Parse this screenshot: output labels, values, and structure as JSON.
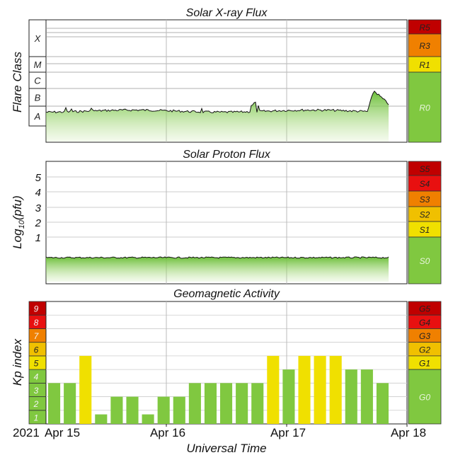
{
  "chart_data": [
    {
      "type": "area",
      "title": "Solar X-ray Flux",
      "ylabel": "Flare Class",
      "y_classes": [
        "X",
        "M",
        "C",
        "B",
        "A"
      ],
      "scale_label": "R0",
      "scale_levels": [
        "R5",
        "R3",
        "R1",
        "R0"
      ],
      "scale_colors": [
        "#c00000",
        "#f08000",
        "#f0e000",
        "#80c840"
      ],
      "note": "Background flux near A–B class, small C-level rise near Apr 18"
    },
    {
      "type": "area",
      "title": "Solar Proton Flux",
      "ylabel": "Log10(pfu)",
      "ylabel_main": "Log",
      "ylabel_sub": "10",
      "ylabel_tail": "(pfu)",
      "yticks": [
        "1",
        "2",
        "3",
        "4",
        "5"
      ],
      "scale_levels": [
        "S5",
        "S4",
        "S3",
        "S2",
        "S1",
        "S0"
      ],
      "scale_colors": [
        "#c00000",
        "#e81010",
        "#f08000",
        "#f0c000",
        "#f0e000",
        "#80c840"
      ]
    },
    {
      "type": "bar",
      "title": "Geomagnetic Activity",
      "ylabel": "Kp index",
      "kp_levels": [
        "1",
        "2",
        "3",
        "4",
        "5",
        "6",
        "7",
        "8",
        "9"
      ],
      "kp_colors": [
        "#80c840",
        "#80c840",
        "#80c840",
        "#80c840",
        "#f0e000",
        "#f0c000",
        "#f08000",
        "#e81010",
        "#c00000"
      ],
      "scale_levels": [
        "G5",
        "G4",
        "G3",
        "G2",
        "G1",
        "G0"
      ],
      "scale_colors": [
        "#c00000",
        "#e81010",
        "#f08000",
        "#f0c000",
        "#f0e000",
        "#80c840"
      ],
      "values": [
        3,
        3,
        5,
        0.7,
        2,
        2,
        0.7,
        2,
        2,
        3,
        3,
        3,
        3,
        3,
        5,
        4,
        5,
        5,
        5,
        4,
        4,
        3
      ],
      "ylim": [
        0,
        9
      ]
    }
  ],
  "xaxis": {
    "year": "2021",
    "labels": [
      "Apr 15",
      "Apr 16",
      "Apr 17",
      "Apr 18"
    ],
    "title": "Universal Time"
  }
}
